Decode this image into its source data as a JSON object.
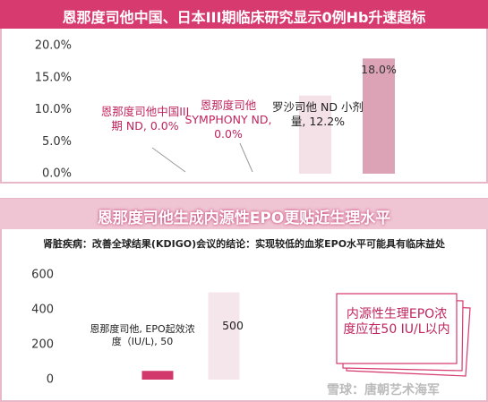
{
  "chart_data": [
    {
      "type": "bar",
      "title": "恩那度司他中国、日本III期临床研究显示0例Hb升速超标",
      "categories": [
        null,
        null,
        null,
        null
      ],
      "values": [
        0.0,
        0.0,
        12.2,
        18.0
      ],
      "value_labels": [
        "恩那度司他中国III期 ND, 0.0%",
        "恩那度司他 SYMPHONY ND, 0.0%",
        "罗沙司他 ND 小剂量, 12.2%",
        "18.0%"
      ],
      "colors": [
        "#d2386b",
        "#d2386b",
        "#f3e1e7",
        "#dca3b7"
      ],
      "ylim": [
        0,
        20
      ],
      "yticks": [
        {
          "value": 0,
          "label": "0.0%"
        },
        {
          "value": 5,
          "label": "5.0%"
        },
        {
          "value": 10,
          "label": "10.0%"
        },
        {
          "value": 15,
          "label": "15.0%"
        },
        {
          "value": 20,
          "label": "20.0%"
        }
      ]
    },
    {
      "type": "bar",
      "title": "恩那度司他生成内源性EPO更贴近生理水平",
      "subtitle": "肾脏疾病：改善全球结果(KDIGO)会议的结论：实现较低的血浆EPO水平可能具有临床益处",
      "categories": [
        null,
        null
      ],
      "values": [
        50,
        500
      ],
      "value_labels": [
        "恩那度司他, EPO起效浓度（IU/L), 50",
        "500"
      ],
      "colors": [
        "#d2386b",
        "#f5e6eb"
      ],
      "ylim": [
        0,
        600
      ],
      "yticks": [
        0,
        200,
        400,
        600
      ],
      "annotations": [
        "内源性生理EPO浓度应在50 IU/L以内"
      ]
    }
  ],
  "watermark": "雪球：唐朝艺术海军"
}
